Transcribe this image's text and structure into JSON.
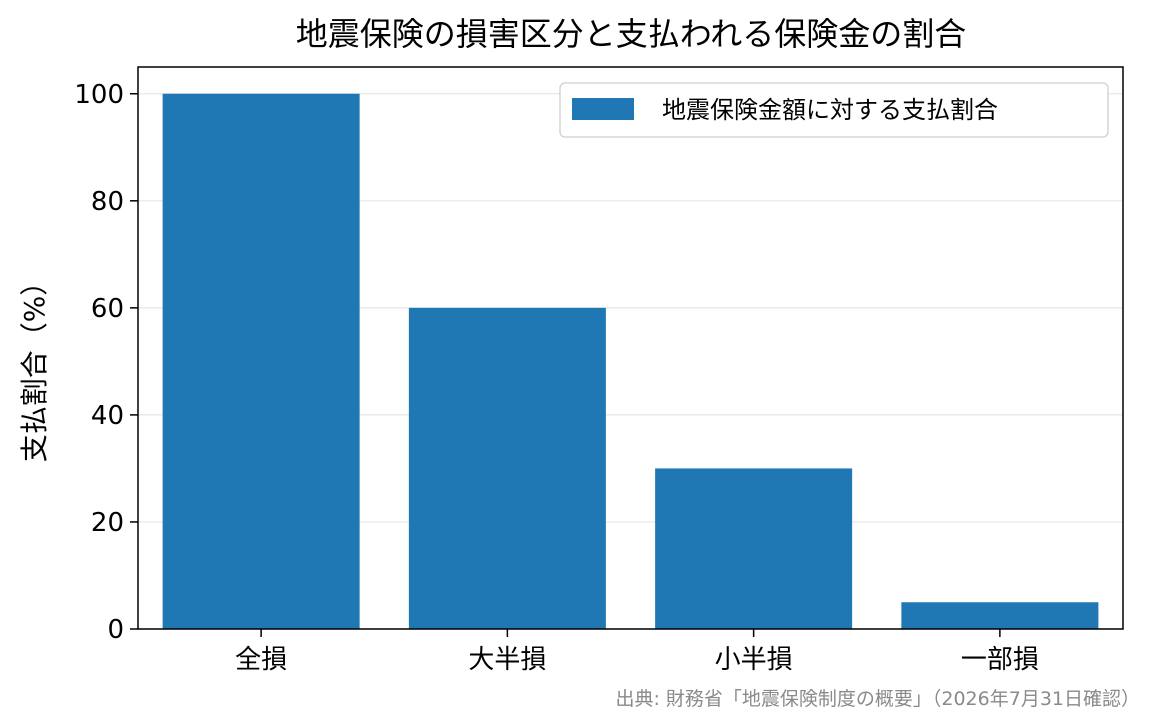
{
  "chart_data": {
    "type": "bar",
    "title": "地震保険の損害区分と支払われる保険金の割合",
    "xlabel": "",
    "ylabel": "支払割合（%）",
    "categories": [
      "全損",
      "大半損",
      "小半損",
      "一部損"
    ],
    "series": [
      {
        "name": "地震保険金額に対する支払割合",
        "values": [
          100,
          60,
          30,
          5
        ],
        "color": "#1f77b4"
      }
    ],
    "ylim": [
      0,
      105
    ],
    "yticks": [
      0,
      20,
      40,
      60,
      80,
      100
    ],
    "grid": true,
    "legend_position": "top-right",
    "source": "出典: 財務省「地震保険制度の概要」（2026年7月31日確認）"
  },
  "colors": {
    "bar": "#1f77b4",
    "grid": "#e6e6e6",
    "axis": "#000000",
    "source": "#8a8a8a"
  }
}
